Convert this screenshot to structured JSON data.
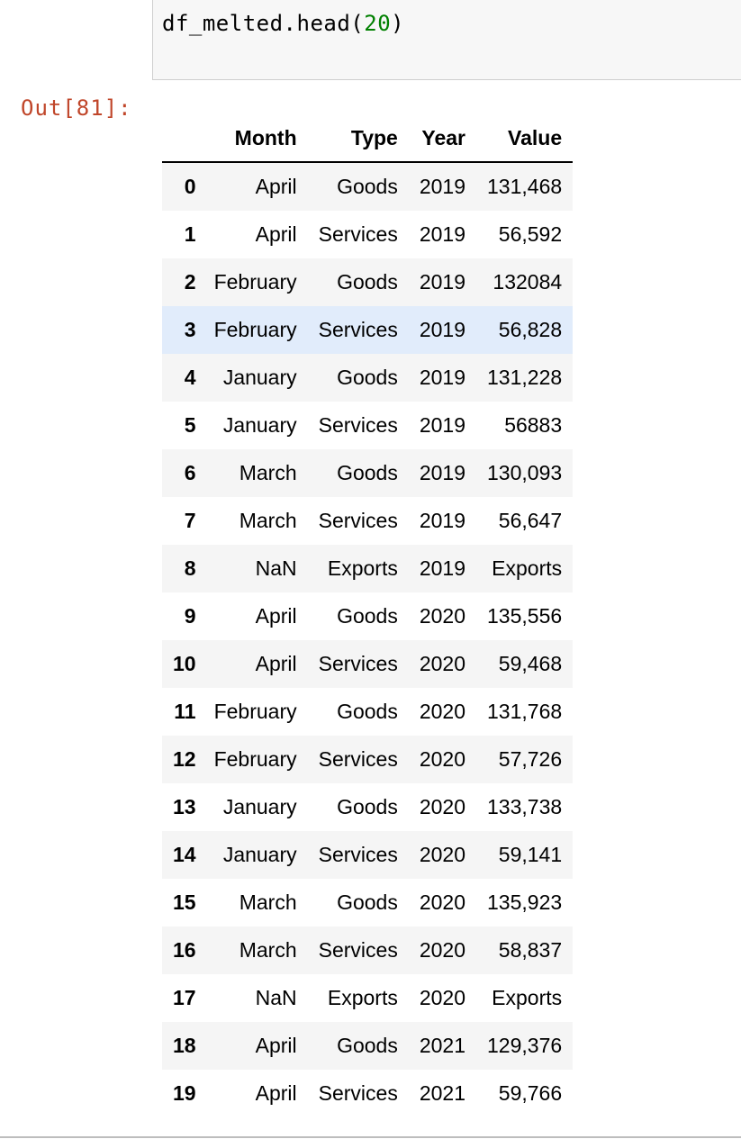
{
  "input_cell": {
    "code_prefix": "df_melted.head(",
    "code_number": "20",
    "code_suffix": ")"
  },
  "output_prompt": "Out[81]:",
  "dataframe": {
    "columns": [
      "Month",
      "Type",
      "Year",
      "Value"
    ],
    "rows": [
      {
        "index": "0",
        "Month": "April",
        "Type": "Goods",
        "Year": "2019",
        "Value": "131,468"
      },
      {
        "index": "1",
        "Month": "April",
        "Type": "Services",
        "Year": "2019",
        "Value": "56,592"
      },
      {
        "index": "2",
        "Month": "February",
        "Type": "Goods",
        "Year": "2019",
        "Value": "132084"
      },
      {
        "index": "3",
        "Month": "February",
        "Type": "Services",
        "Year": "2019",
        "Value": "56,828"
      },
      {
        "index": "4",
        "Month": "January",
        "Type": "Goods",
        "Year": "2019",
        "Value": "131,228"
      },
      {
        "index": "5",
        "Month": "January",
        "Type": "Services",
        "Year": "2019",
        "Value": "56883"
      },
      {
        "index": "6",
        "Month": "March",
        "Type": "Goods",
        "Year": "2019",
        "Value": "130,093"
      },
      {
        "index": "7",
        "Month": "March",
        "Type": "Services",
        "Year": "2019",
        "Value": "56,647"
      },
      {
        "index": "8",
        "Month": "NaN",
        "Type": "Exports",
        "Year": "2019",
        "Value": "Exports"
      },
      {
        "index": "9",
        "Month": "April",
        "Type": "Goods",
        "Year": "2020",
        "Value": "135,556"
      },
      {
        "index": "10",
        "Month": "April",
        "Type": "Services",
        "Year": "2020",
        "Value": "59,468"
      },
      {
        "index": "11",
        "Month": "February",
        "Type": "Goods",
        "Year": "2020",
        "Value": "131,768"
      },
      {
        "index": "12",
        "Month": "February",
        "Type": "Services",
        "Year": "2020",
        "Value": "57,726"
      },
      {
        "index": "13",
        "Month": "January",
        "Type": "Goods",
        "Year": "2020",
        "Value": "133,738"
      },
      {
        "index": "14",
        "Month": "January",
        "Type": "Services",
        "Year": "2020",
        "Value": "59,141"
      },
      {
        "index": "15",
        "Month": "March",
        "Type": "Goods",
        "Year": "2020",
        "Value": "135,923"
      },
      {
        "index": "16",
        "Month": "March",
        "Type": "Services",
        "Year": "2020",
        "Value": "58,837"
      },
      {
        "index": "17",
        "Month": "NaN",
        "Type": "Exports",
        "Year": "2020",
        "Value": "Exports"
      },
      {
        "index": "18",
        "Month": "April",
        "Type": "Goods",
        "Year": "2021",
        "Value": "129,376"
      },
      {
        "index": "19",
        "Month": "April",
        "Type": "Services",
        "Year": "2021",
        "Value": "59,766"
      }
    ],
    "highlighted_row": 3
  },
  "colors": {
    "prompt_out": "#c0462a",
    "code_number": "#008000",
    "row_stripe": "#f5f5f5",
    "row_hover": "#e1ecfb",
    "input_background": "#f7f7f7"
  }
}
